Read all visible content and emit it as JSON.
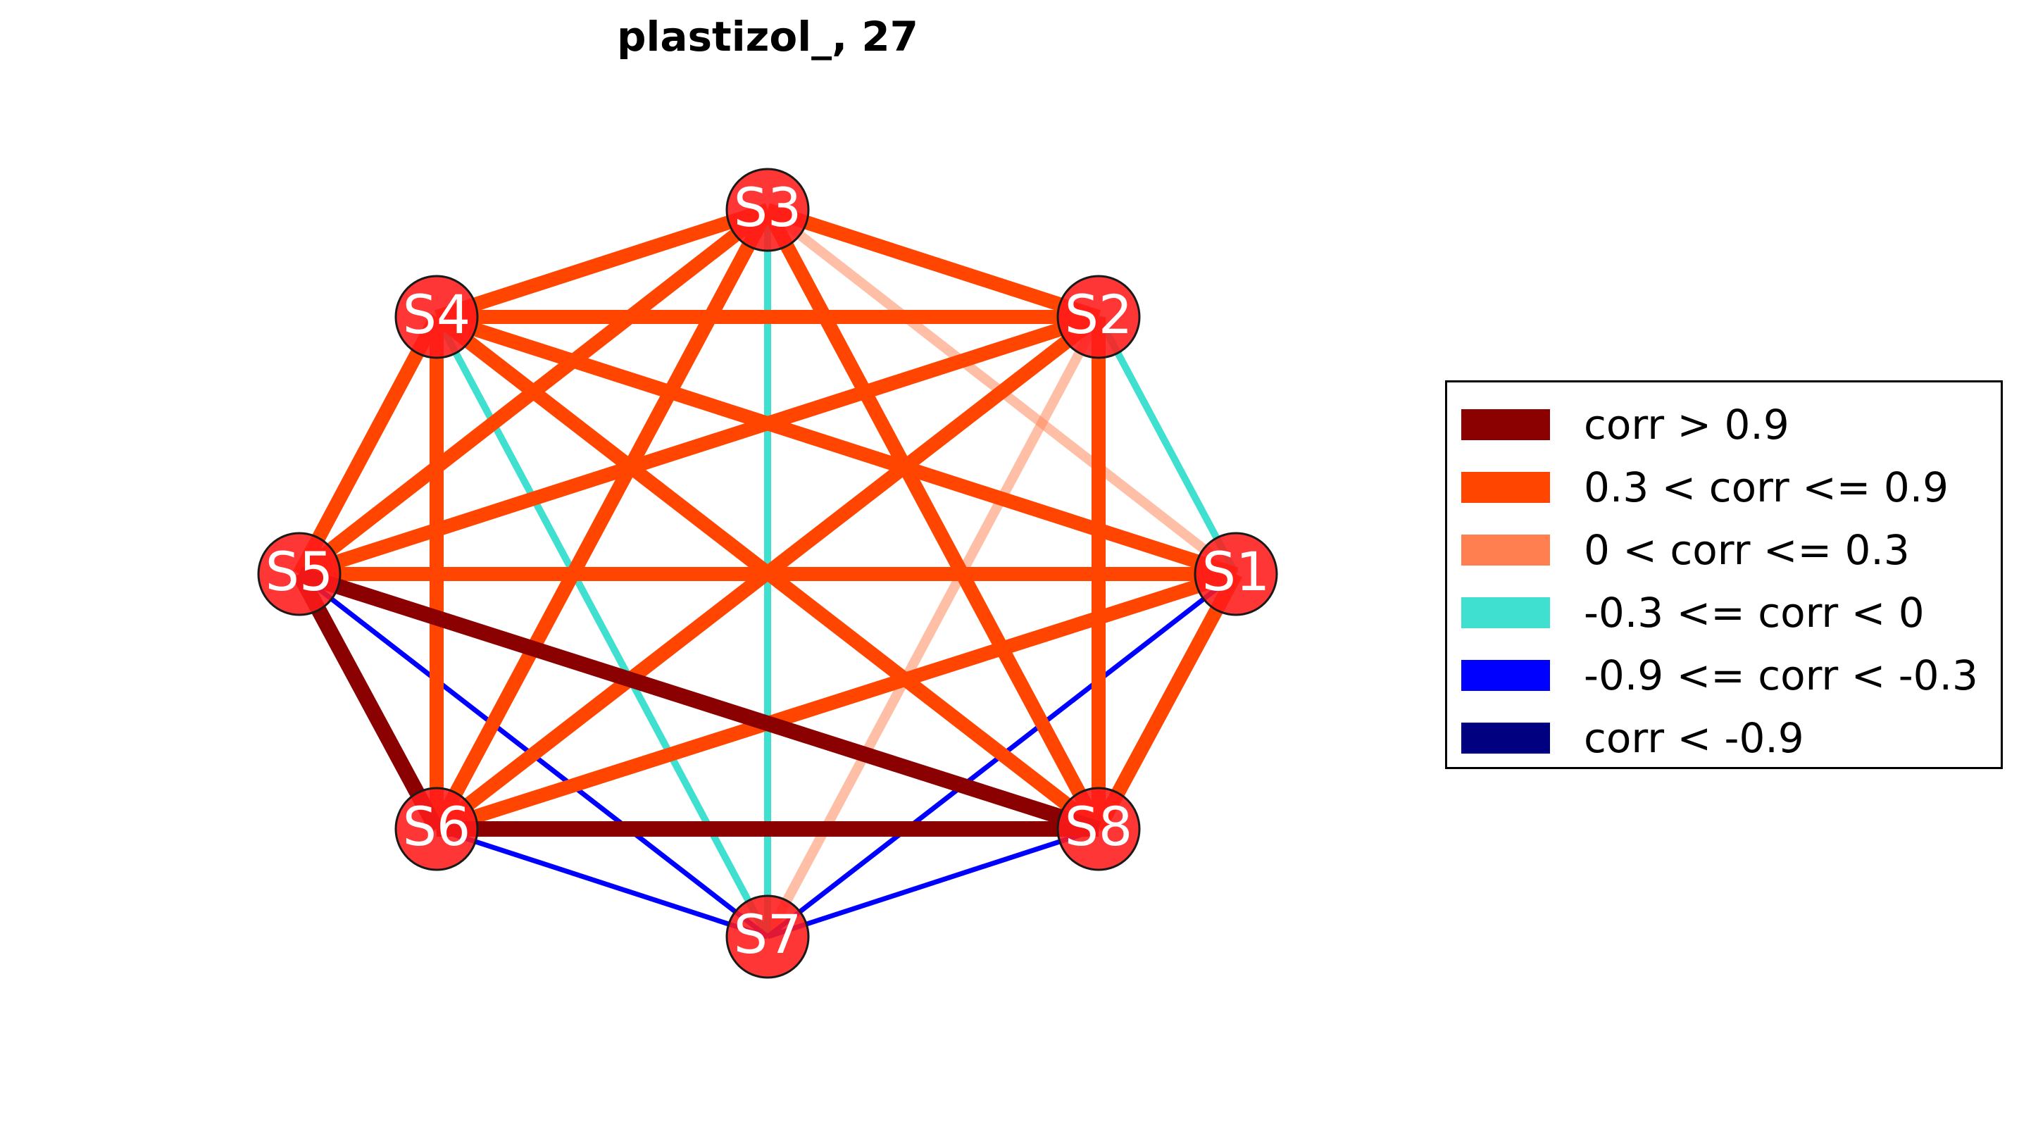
{
  "title": "plastizol_, 27",
  "colors": {
    "strong_pos": "#8b0000",
    "mid_pos": "#ff4500",
    "weak_pos": "#ff7f50",
    "weak_neg": "#40e0d0",
    "mid_neg": "#0000ff",
    "strong_neg": "#000080",
    "node_fill": "#ff1a1a",
    "node_edge": "#1a1a1a"
  },
  "legend": [
    {
      "label": "corr > 0.9",
      "color": "#8b0000"
    },
    {
      "label": "0.3 < corr <= 0.9",
      "color": "#ff4500"
    },
    {
      "label": "0 < corr <= 0.3",
      "color": "#ff7f50"
    },
    {
      "label": "-0.3 <= corr < 0",
      "color": "#40e0d0"
    },
    {
      "label": "-0.9 <= corr < -0.3",
      "color": "#0000ff"
    },
    {
      "label": "corr < -0.9",
      "color": "#000080"
    }
  ],
  "nodes": [
    "S1",
    "S2",
    "S3",
    "S4",
    "S5",
    "S6",
    "S7",
    "S8"
  ],
  "edges": [
    {
      "source": "S1",
      "target": "S2",
      "class": "weak_neg"
    },
    {
      "source": "S1",
      "target": "S3",
      "class": "weak_pos_faint"
    },
    {
      "source": "S1",
      "target": "S4",
      "class": "mid_pos"
    },
    {
      "source": "S1",
      "target": "S5",
      "class": "mid_pos"
    },
    {
      "source": "S1",
      "target": "S6",
      "class": "mid_pos"
    },
    {
      "source": "S1",
      "target": "S7",
      "class": "mid_neg"
    },
    {
      "source": "S1",
      "target": "S8",
      "class": "mid_pos"
    },
    {
      "source": "S2",
      "target": "S3",
      "class": "mid_pos"
    },
    {
      "source": "S2",
      "target": "S4",
      "class": "mid_pos"
    },
    {
      "source": "S2",
      "target": "S5",
      "class": "mid_pos"
    },
    {
      "source": "S2",
      "target": "S6",
      "class": "mid_pos"
    },
    {
      "source": "S2",
      "target": "S7",
      "class": "weak_pos_faint"
    },
    {
      "source": "S2",
      "target": "S8",
      "class": "mid_pos"
    },
    {
      "source": "S3",
      "target": "S4",
      "class": "mid_pos"
    },
    {
      "source": "S3",
      "target": "S5",
      "class": "mid_pos"
    },
    {
      "source": "S3",
      "target": "S6",
      "class": "mid_pos"
    },
    {
      "source": "S3",
      "target": "S7",
      "class": "weak_neg"
    },
    {
      "source": "S3",
      "target": "S8",
      "class": "mid_pos"
    },
    {
      "source": "S4",
      "target": "S5",
      "class": "mid_pos"
    },
    {
      "source": "S4",
      "target": "S6",
      "class": "mid_pos"
    },
    {
      "source": "S4",
      "target": "S7",
      "class": "weak_neg"
    },
    {
      "source": "S4",
      "target": "S8",
      "class": "mid_pos"
    },
    {
      "source": "S5",
      "target": "S6",
      "class": "strong_pos"
    },
    {
      "source": "S5",
      "target": "S7",
      "class": "mid_neg"
    },
    {
      "source": "S5",
      "target": "S8",
      "class": "strong_pos"
    },
    {
      "source": "S6",
      "target": "S7",
      "class": "mid_neg"
    },
    {
      "source": "S6",
      "target": "S8",
      "class": "strong_pos"
    },
    {
      "source": "S7",
      "target": "S8",
      "class": "mid_neg"
    }
  ]
}
